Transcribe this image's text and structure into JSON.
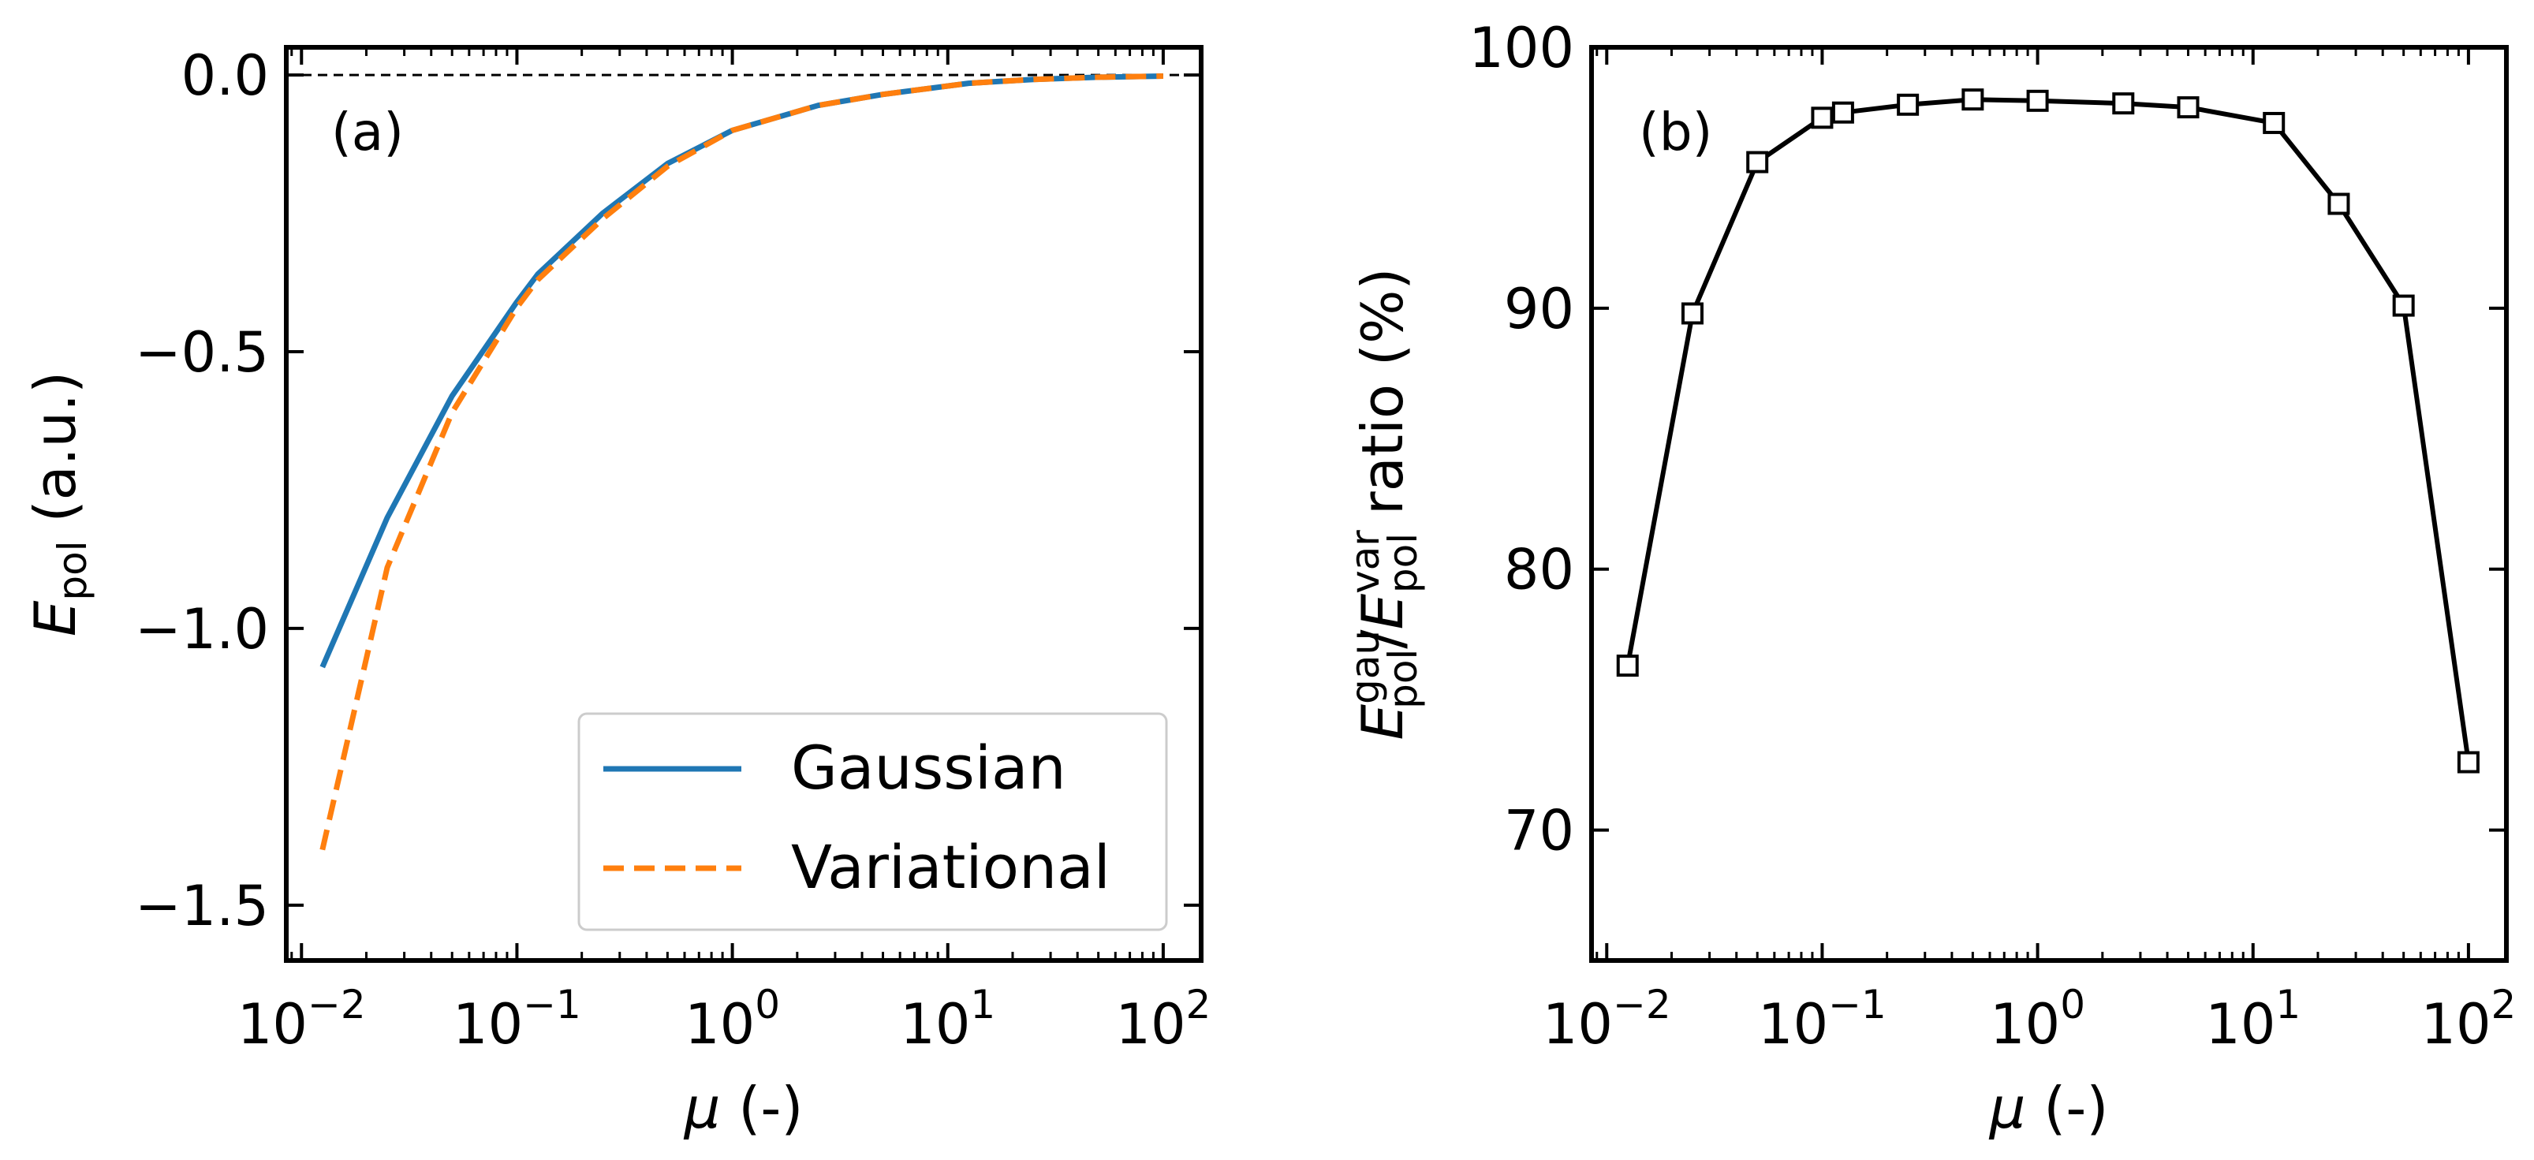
{
  "colors": {
    "gaussian": "#1f77b4",
    "variational": "#ff7f0e",
    "ratio": "#000000",
    "axes": "#000000"
  },
  "chart_data": [
    {
      "type": "line",
      "panel_label": "(a)",
      "xscale": "log",
      "xlim": [
        0.0085,
        150
      ],
      "ylim": [
        -1.6,
        0.05
      ],
      "xlabel_symbol": "μ",
      "xlabel_unit": "(-)",
      "ylabel_symbol": "E",
      "ylabel_sub": "pol",
      "ylabel_unit": "(a.u.)",
      "x_ticks": [
        {
          "value": 0.01,
          "base": "10",
          "exp": "−2"
        },
        {
          "value": 0.1,
          "base": "10",
          "exp": "−1"
        },
        {
          "value": 1,
          "base": "10",
          "exp": "0"
        },
        {
          "value": 10,
          "base": "10",
          "exp": "1"
        },
        {
          "value": 100,
          "base": "10",
          "exp": "2"
        }
      ],
      "y_ticks": [
        {
          "value": 0.0,
          "label": "0.0"
        },
        {
          "value": -0.5,
          "label": "−0.5"
        },
        {
          "value": -1.0,
          "label": "−1.0"
        },
        {
          "value": -1.5,
          "label": "−1.5"
        }
      ],
      "reference_line_y": 0.0,
      "x": [
        0.0125,
        0.025,
        0.05,
        0.1,
        0.125,
        0.25,
        0.5,
        1,
        2.5,
        5,
        12.5,
        25,
        50,
        100
      ],
      "series": [
        {
          "name": "Gaussian",
          "style": "solid",
          "values": [
            -1.07,
            -0.8,
            -0.58,
            -0.41,
            -0.36,
            -0.25,
            -0.16,
            -0.1,
            -0.055,
            -0.035,
            -0.015,
            -0.008,
            -0.004,
            -0.002
          ]
        },
        {
          "name": "Variational",
          "style": "dashed",
          "values": [
            -1.4,
            -0.89,
            -0.61,
            -0.42,
            -0.37,
            -0.26,
            -0.165,
            -0.1,
            -0.055,
            -0.035,
            -0.015,
            -0.008,
            -0.004,
            -0.002
          ]
        }
      ],
      "legend": {
        "placement": "lower-right",
        "entries": [
          "Gaussian",
          "Variational"
        ]
      }
    },
    {
      "type": "line",
      "panel_label": "(b)",
      "xscale": "log",
      "xlim": [
        0.0085,
        150
      ],
      "ylim": [
        65,
        100
      ],
      "xlabel_symbol": "μ",
      "xlabel_unit": "(-)",
      "ylabel_num_symbol": "E",
      "ylabel_num_sup": "gau",
      "ylabel_num_sub": "pol",
      "ylabel_slash": "/",
      "ylabel_den_symbol": "E",
      "ylabel_den_sup": "var",
      "ylabel_den_sub": "pol",
      "ylabel_rest": "ratio (%)",
      "x_ticks": [
        {
          "value": 0.01,
          "base": "10",
          "exp": "−2"
        },
        {
          "value": 0.1,
          "base": "10",
          "exp": "−1"
        },
        {
          "value": 1,
          "base": "10",
          "exp": "0"
        },
        {
          "value": 10,
          "base": "10",
          "exp": "1"
        },
        {
          "value": 100,
          "base": "10",
          "exp": "2"
        }
      ],
      "y_ticks": [
        {
          "value": 100,
          "label": "100"
        },
        {
          "value": 90,
          "label": "90"
        },
        {
          "value": 80,
          "label": "80"
        },
        {
          "value": 70,
          "label": "70"
        }
      ],
      "x": [
        0.0125,
        0.025,
        0.05,
        0.1,
        0.125,
        0.25,
        0.5,
        1,
        2.5,
        5,
        12.5,
        25,
        50,
        100
      ],
      "series": [
        {
          "name": "Gaussian/Variational ratio",
          "marker": "square",
          "values": [
            76.3,
            89.8,
            95.6,
            97.3,
            97.5,
            97.8,
            98.0,
            97.95,
            97.85,
            97.7,
            97.1,
            94.0,
            90.1,
            72.6
          ]
        }
      ]
    }
  ]
}
